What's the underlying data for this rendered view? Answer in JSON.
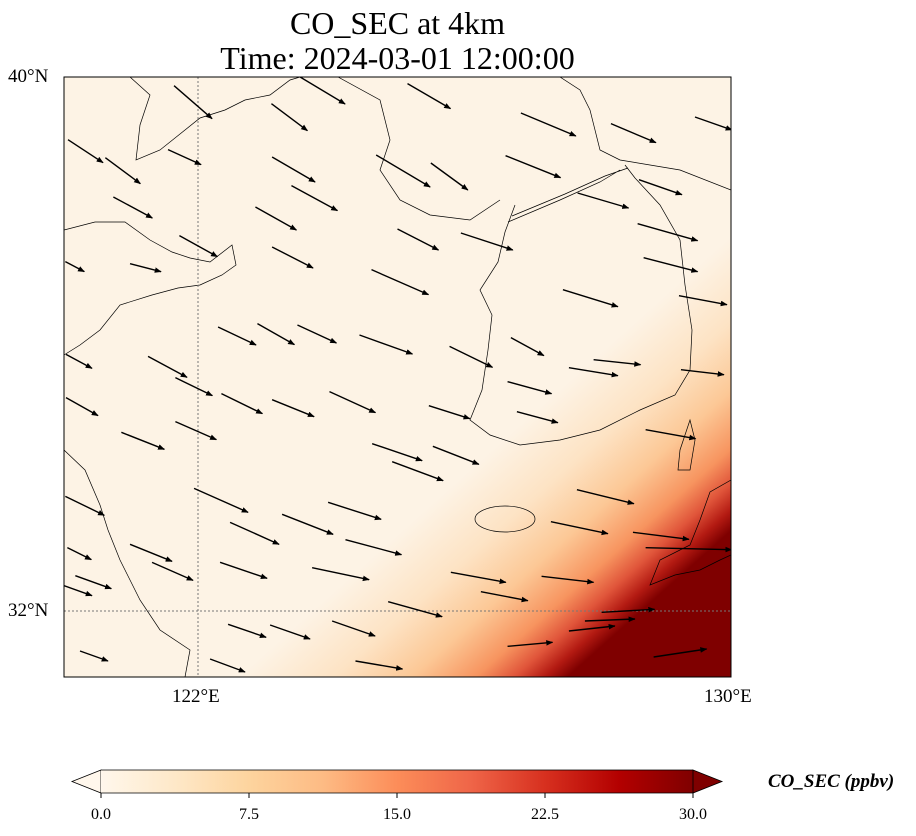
{
  "title": {
    "line1": "CO_SEC at 4km",
    "line2": "Time: 2024-03-01 12:00:00"
  },
  "map": {
    "extent": {
      "lon": [
        120,
        130
      ],
      "lat": [
        31,
        40
      ]
    },
    "gridlines": {
      "lon": [
        122,
        130
      ],
      "lat": [
        32,
        40
      ]
    },
    "lat_labels": [
      "40°N",
      "32°N"
    ],
    "lon_labels": [
      "122°E",
      "130°E"
    ],
    "field_colors": [
      "#fdf3e5",
      "#fde3c4",
      "#fcc896",
      "#f7945f",
      "#e0553a",
      "#b31a12",
      "#7f0000"
    ],
    "wind_vectors_lon_lat_u_v": [
      [
        121.65,
        39.87,
        7.6,
        -6.6
      ],
      [
        123.11,
        39.6,
        7.2,
        -5.4
      ],
      [
        123.54,
        40.0,
        9,
        -5.4
      ],
      [
        125.15,
        39.9,
        8.6,
        -5
      ],
      [
        126.85,
        39.46,
        11,
        -4.6
      ],
      [
        128.2,
        39.3,
        9,
        -3.8
      ],
      [
        129.46,
        39.4,
        7.4,
        -2.6
      ],
      [
        120.06,
        39.06,
        7,
        -4.6
      ],
      [
        120.62,
        38.79,
        7,
        -5.2
      ],
      [
        121.56,
        38.91,
        6.6,
        -3
      ],
      [
        123.12,
        38.8,
        8.6,
        -5
      ],
      [
        123.41,
        38.37,
        9.2,
        -5
      ],
      [
        124.68,
        38.83,
        10.8,
        -6.4
      ],
      [
        125.5,
        38.71,
        7.4,
        -5.4
      ],
      [
        126.62,
        38.82,
        11,
        -4.4
      ],
      [
        127.7,
        38.26,
        10.2,
        -3
      ],
      [
        128.62,
        38.46,
        8.6,
        -3
      ],
      [
        120.74,
        38.2,
        7.8,
        -4.2
      ],
      [
        122.87,
        38.05,
        8.2,
        -4.6
      ],
      [
        125.0,
        37.72,
        8.2,
        -4.2
      ],
      [
        125.95,
        37.66,
        10.4,
        -3.4
      ],
      [
        128.6,
        37.8,
        12,
        -3.4
      ],
      [
        121.73,
        37.62,
        7.6,
        -4.2
      ],
      [
        123.12,
        37.45,
        8.2,
        -4.2
      ],
      [
        124.61,
        37.11,
        11.4,
        -5
      ],
      [
        120.02,
        37.23,
        3.8,
        -2
      ],
      [
        128.69,
        37.29,
        10.8,
        -2.8
      ],
      [
        120.99,
        37.2,
        6.2,
        -1.6
      ],
      [
        127.48,
        36.81,
        11,
        -3.4
      ],
      [
        129.22,
        36.72,
        9.6,
        -1.8
      ],
      [
        122.31,
        36.25,
        7.6,
        -3.6
      ],
      [
        122.9,
        36.3,
        7.4,
        -4.2
      ],
      [
        123.5,
        36.28,
        7.8,
        -3.6
      ],
      [
        124.43,
        36.13,
        10.6,
        -3.8
      ],
      [
        125.78,
        35.96,
        8.6,
        -4.2
      ],
      [
        126.7,
        36.09,
        6.6,
        -3.6
      ],
      [
        127.94,
        35.76,
        9.4,
        -1
      ],
      [
        127.57,
        35.64,
        9.8,
        -1.6
      ],
      [
        129.25,
        35.61,
        8.6,
        -1
      ],
      [
        120.03,
        35.84,
        5.2,
        -2.8
      ],
      [
        121.26,
        35.81,
        7.8,
        -4.2
      ],
      [
        121.67,
        35.49,
        7.4,
        -3.6
      ],
      [
        122.36,
        35.25,
        8.2,
        -4
      ],
      [
        123.12,
        35.16,
        8.4,
        -3.4
      ],
      [
        123.98,
        35.28,
        9.2,
        -4.2
      ],
      [
        120.03,
        35.19,
        6.4,
        -3.6
      ],
      [
        125.47,
        35.07,
        8.2,
        -2.6
      ],
      [
        126.65,
        35.43,
        8.8,
        -2.4
      ],
      [
        126.79,
        34.98,
        8.2,
        -2.2
      ],
      [
        128.72,
        34.71,
        10,
        -1.8
      ],
      [
        120.86,
        34.67,
        8.6,
        -3.4
      ],
      [
        121.67,
        34.83,
        8.2,
        -3.6
      ],
      [
        124.62,
        34.5,
        10,
        -3.4
      ],
      [
        125.53,
        34.46,
        9.2,
        -3.6
      ],
      [
        124.92,
        34.23,
        10.2,
        -3.8
      ],
      [
        120.02,
        33.71,
        7.8,
        -3.8
      ],
      [
        121.95,
        33.83,
        10.8,
        -4.8
      ],
      [
        122.49,
        33.32,
        9.8,
        -4.4
      ],
      [
        123.27,
        33.44,
        10.2,
        -4
      ],
      [
        123.96,
        33.62,
        10.6,
        -3.4
      ],
      [
        127.69,
        33.81,
        11.4,
        -2.8
      ],
      [
        127.3,
        33.33,
        11.4,
        -2.4
      ],
      [
        128.53,
        33.17,
        11.2,
        -1.4
      ],
      [
        124.22,
        33.06,
        11.2,
        -3
      ],
      [
        120.99,
        32.99,
        8.4,
        -3.4
      ],
      [
        120.05,
        32.94,
        4.8,
        -2.4
      ],
      [
        121.32,
        32.72,
        8.2,
        -3.6
      ],
      [
        122.34,
        32.72,
        9.4,
        -3.2
      ],
      [
        123.72,
        32.64,
        11.4,
        -2.4
      ],
      [
        125.8,
        32.57,
        11,
        -2
      ],
      [
        127.16,
        32.51,
        10.4,
        -1.2
      ],
      [
        128.72,
        32.94,
        17.2,
        -0.4
      ],
      [
        126.25,
        32.28,
        9.4,
        -1.8
      ],
      [
        124.86,
        32.13,
        10.8,
        -3
      ],
      [
        128.06,
        31.97,
        10.6,
        0.6
      ],
      [
        120.17,
        32.52,
        7.2,
        -2.6
      ],
      [
        120.0,
        32.37,
        5.6,
        -2
      ],
      [
        122.46,
        31.79,
        7.6,
        -2.6
      ],
      [
        123.09,
        31.78,
        8,
        -2.8
      ],
      [
        124.02,
        31.84,
        8.6,
        -3
      ],
      [
        127.57,
        31.69,
        9.2,
        1
      ],
      [
        127.81,
        31.84,
        10,
        0.4
      ],
      [
        126.65,
        31.46,
        9,
        0.8
      ],
      [
        128.84,
        31.3,
        10.6,
        1.6
      ],
      [
        120.24,
        31.39,
        5.6,
        -2
      ],
      [
        122.19,
        31.27,
        7,
        -2.6
      ],
      [
        124.37,
        31.24,
        9.4,
        -1.6
      ]
    ]
  },
  "colorbar": {
    "label": "CO_SEC (ppbv)",
    "range": [
      0,
      30
    ],
    "extend": "both",
    "ticks": [
      {
        "value": 0,
        "label": "0.0"
      },
      {
        "value": 7.5,
        "label": "7.5"
      },
      {
        "value": 15,
        "label": "15.0"
      },
      {
        "value": 22.5,
        "label": "22.5"
      },
      {
        "value": 30,
        "label": "30.0"
      }
    ],
    "colors": [
      "#fff7ec",
      "#fee8c8",
      "#fdd49e",
      "#fdbb84",
      "#fc8d59",
      "#ef6548",
      "#d7301f",
      "#b30000",
      "#7f0000"
    ]
  }
}
